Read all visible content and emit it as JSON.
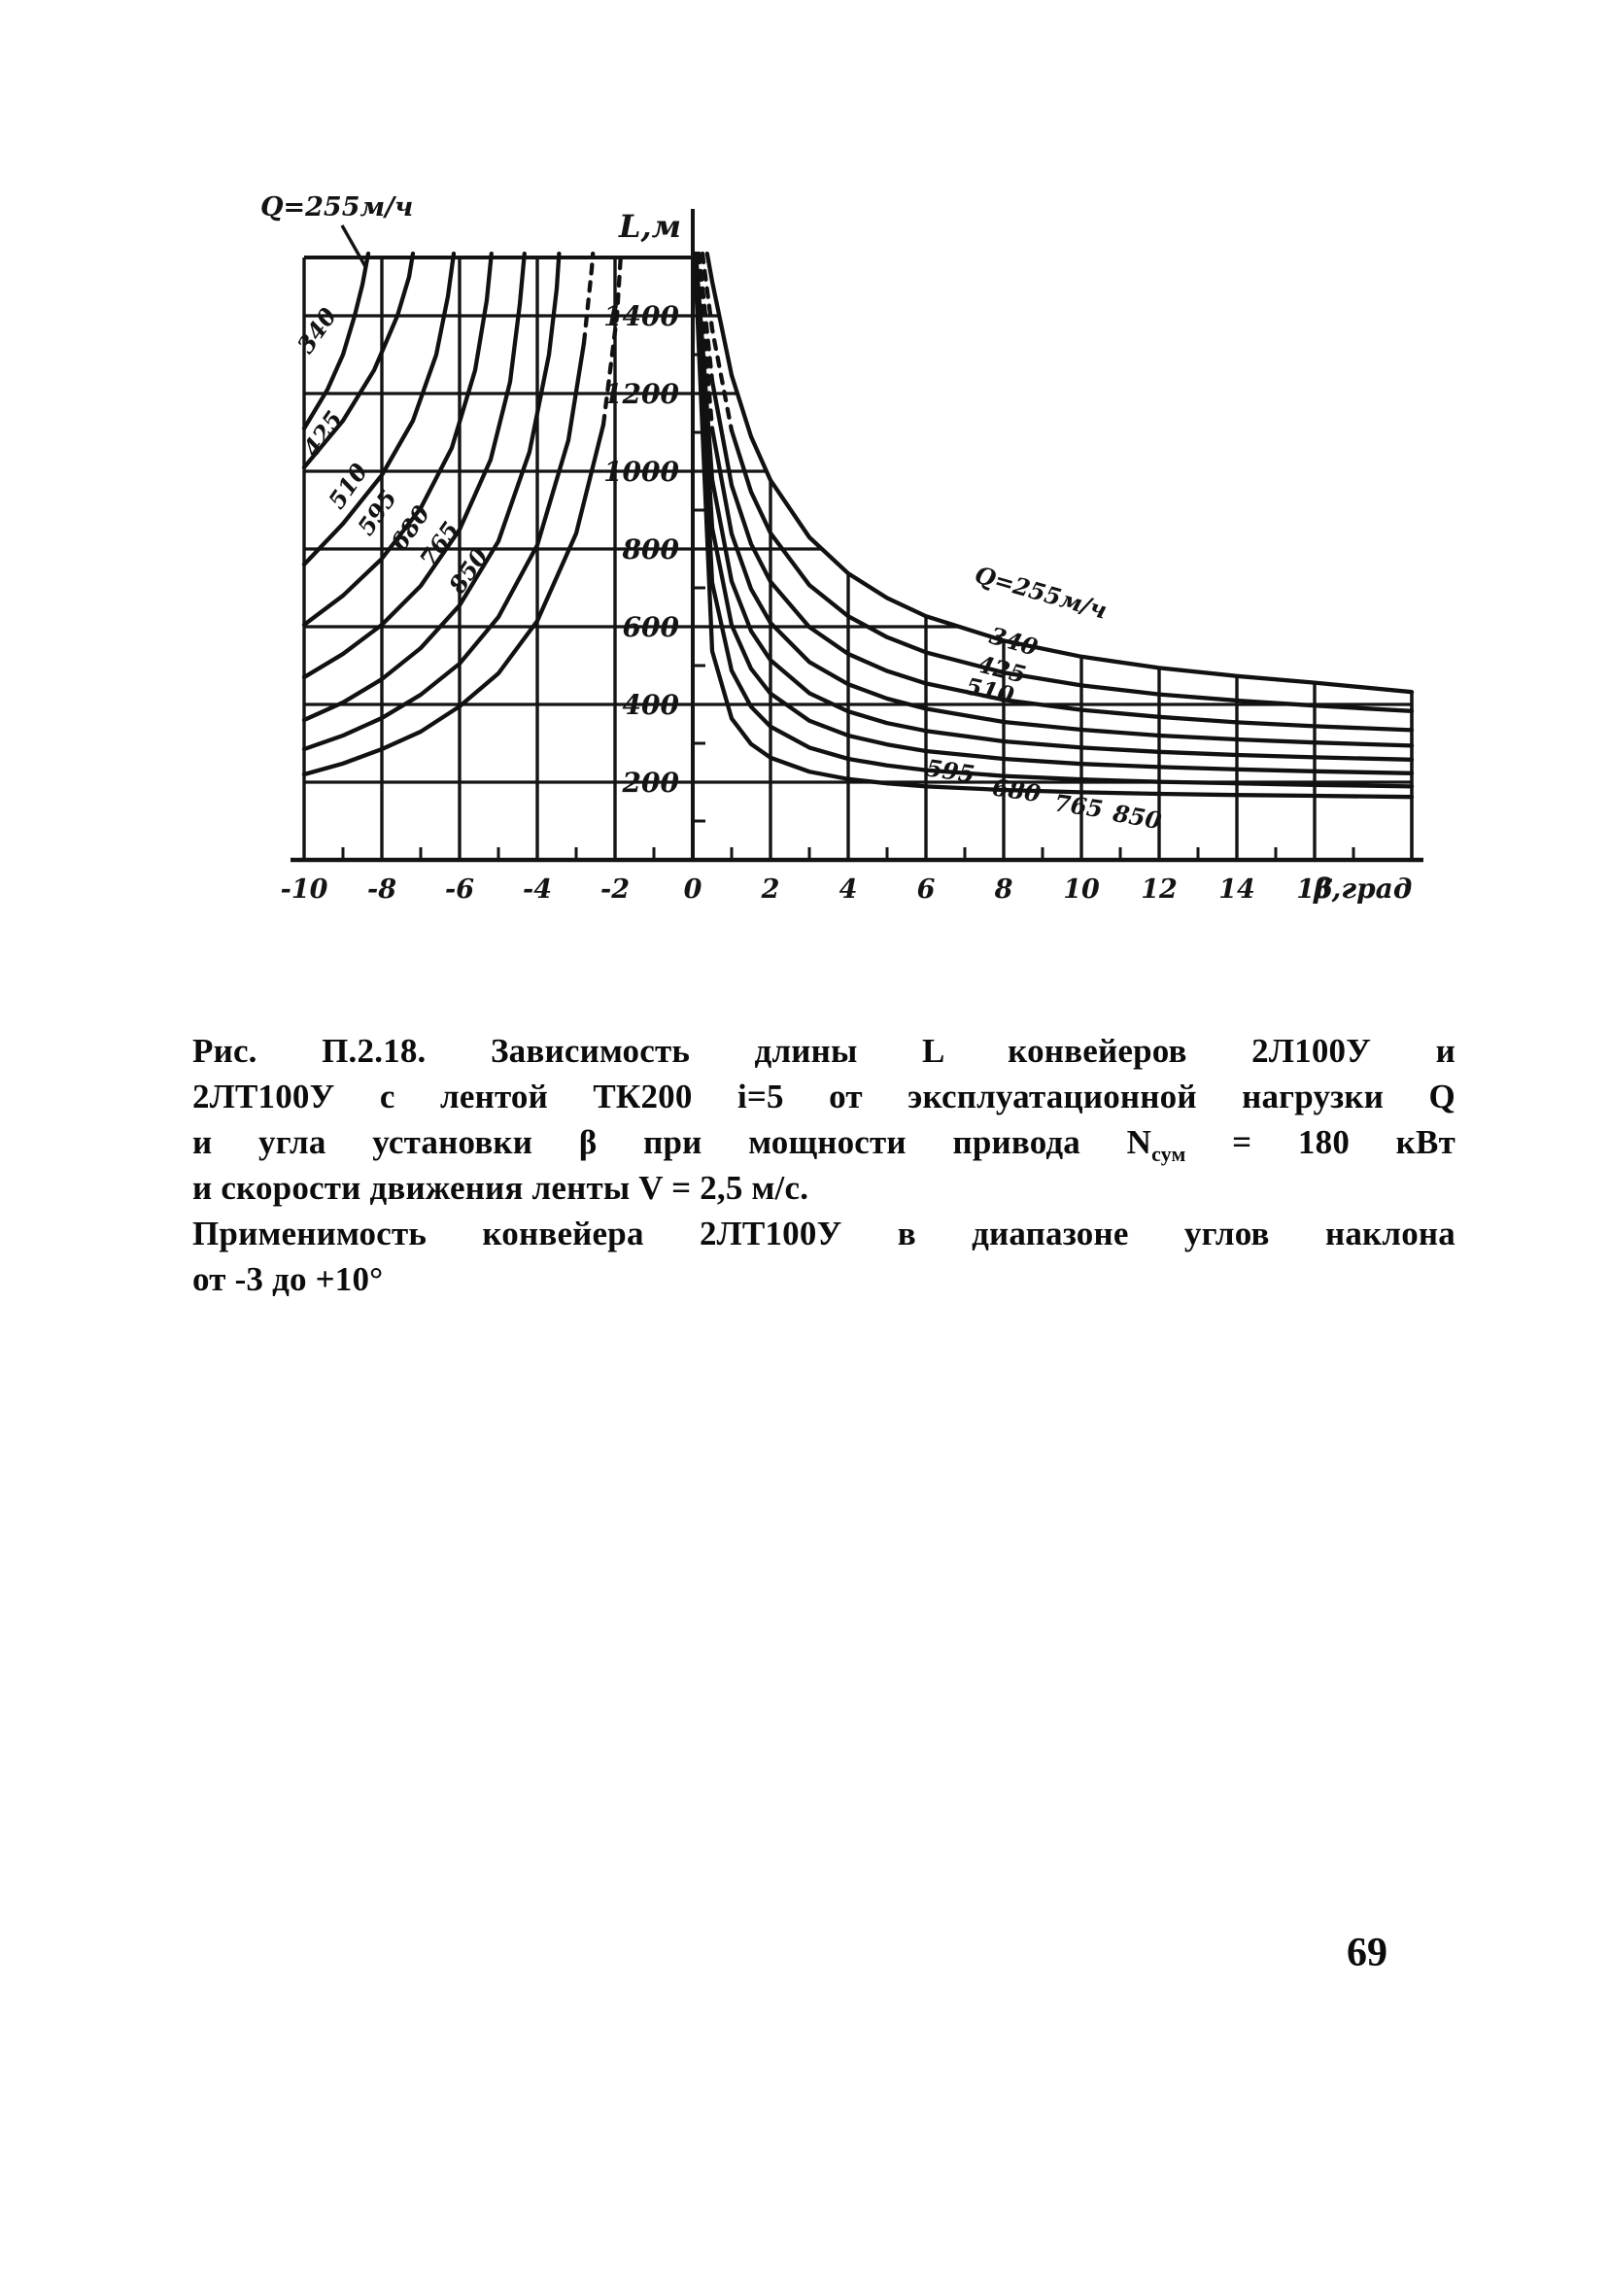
{
  "page": {
    "number": "69"
  },
  "chart_data": {
    "type": "line",
    "description": "Nomogram: conveyor length L (m) versus installation angle beta (deg) for a family of load values Q (m3/h)",
    "ylabel": "L,м",
    "xlabel": "β,град",
    "top_left_note": "Q=255м/ч",
    "xlim": [
      -10,
      18.5
    ],
    "ylim": [
      0,
      1550
    ],
    "x_tick_labels": [
      -10,
      -8,
      -6,
      -4,
      -2,
      0,
      2,
      4,
      6,
      8,
      10,
      12,
      14,
      16
    ],
    "x_minor_ticks": [
      -9,
      -7,
      -5,
      -3,
      -1,
      1,
      3,
      5,
      7,
      9,
      11,
      13,
      15,
      17
    ],
    "y_ticks": [
      200,
      400,
      600,
      800,
      1000,
      1200,
      1400
    ],
    "y_minor_ticks": [
      100,
      300,
      500,
      700,
      900,
      1100,
      1300,
      1500
    ],
    "grid": true,
    "series": [
      {
        "q": "255",
        "right_label": {
          "text": "Q=255м/ч",
          "beta": 8.9,
          "L": 668,
          "rot": 16
        },
        "left_label": null,
        "left": [
          [
            -10,
            1110
          ],
          [
            -9.4,
            1210
          ],
          [
            -9.0,
            1300
          ],
          [
            -8.7,
            1400
          ],
          [
            -8.5,
            1480
          ],
          [
            -8.35,
            1560
          ]
        ],
        "right": [
          [
            0.37,
            1560
          ],
          [
            0.5,
            1488
          ],
          [
            1,
            1247
          ],
          [
            1.5,
            1089
          ],
          [
            2,
            977
          ],
          [
            3,
            830
          ],
          [
            4,
            737
          ],
          [
            5,
            674
          ],
          [
            6,
            627
          ],
          [
            8,
            564
          ],
          [
            10,
            523
          ],
          [
            12,
            494
          ],
          [
            14,
            473
          ],
          [
            16,
            456
          ],
          [
            18.5,
            432
          ]
        ]
      },
      {
        "q": "340",
        "right_label": {
          "text": "340",
          "beta": 8.2,
          "L": 542,
          "rot": 16
        },
        "left_label": {
          "text": "340",
          "beta": -9.5,
          "L": 1350,
          "rot": -55
        },
        "left": [
          [
            -10,
            1010
          ],
          [
            -9.0,
            1130
          ],
          [
            -8.2,
            1260
          ],
          [
            -7.6,
            1400
          ],
          [
            -7.3,
            1500
          ],
          [
            -7.2,
            1560
          ]
        ],
        "right": [
          [
            0.25,
            1560
          ],
          [
            0.5,
            1365
          ],
          [
            1,
            1105
          ],
          [
            1.5,
            947
          ],
          [
            2,
            841
          ],
          [
            3,
            707
          ],
          [
            4,
            627
          ],
          [
            5,
            573
          ],
          [
            6,
            534
          ],
          [
            8,
            482
          ],
          [
            10,
            449
          ],
          [
            12,
            426
          ],
          [
            14,
            410
          ],
          [
            16,
            397
          ],
          [
            18.5,
            383
          ]
        ]
      },
      {
        "q": "425",
        "right_label": {
          "text": "425",
          "beta": 7.9,
          "L": 470,
          "rot": 14
        },
        "left_label": {
          "text": "425",
          "beta": -9.35,
          "L": 1085,
          "rot": -55
        },
        "left": [
          [
            -10,
            760
          ],
          [
            -9,
            865
          ],
          [
            -8,
            990
          ],
          [
            -7.2,
            1130
          ],
          [
            -6.6,
            1300
          ],
          [
            -6.3,
            1450
          ],
          [
            -6.15,
            1560
          ]
        ],
        "right": [
          [
            0.16,
            1560
          ],
          [
            0.5,
            1232
          ],
          [
            1,
            964
          ],
          [
            1.5,
            813
          ],
          [
            2,
            716
          ],
          [
            3,
            599
          ],
          [
            4,
            530
          ],
          [
            5,
            486
          ],
          [
            6,
            454
          ],
          [
            8,
            412
          ],
          [
            10,
            386
          ],
          [
            12,
            368
          ],
          [
            14,
            354
          ],
          [
            16,
            344
          ],
          [
            18.5,
            334
          ]
        ]
      },
      {
        "q": "510",
        "right_label": {
          "text": "510",
          "beta": 7.6,
          "L": 415,
          "rot": 12
        },
        "left_label": {
          "text": "510",
          "beta": -8.7,
          "L": 950,
          "rot": -55
        },
        "left": [
          [
            -10,
            605
          ],
          [
            -9,
            680
          ],
          [
            -8,
            775
          ],
          [
            -7,
            905
          ],
          [
            -6.2,
            1060
          ],
          [
            -5.6,
            1260
          ],
          [
            -5.3,
            1440
          ],
          [
            -5.18,
            1560
          ]
        ],
        "right": [
          [
            0.12,
            1560
          ],
          [
            0.5,
            1109
          ],
          [
            1,
            839
          ],
          [
            1.5,
            697
          ],
          [
            2,
            610
          ],
          [
            3,
            509
          ],
          [
            4,
            452
          ],
          [
            5,
            415
          ],
          [
            6,
            389
          ],
          [
            8,
            355
          ],
          [
            10,
            335
          ],
          [
            12,
            320
          ],
          [
            14,
            310
          ],
          [
            16,
            302
          ],
          [
            18.5,
            294
          ]
        ]
      },
      {
        "q": "595",
        "right_label": {
          "text": "595",
          "beta": 6.6,
          "L": 208,
          "rot": 8
        },
        "left_label": {
          "text": "595",
          "beta": -7.95,
          "L": 882,
          "rot": -55
        },
        "left": [
          [
            -10,
            470
          ],
          [
            -9,
            530
          ],
          [
            -8,
            605
          ],
          [
            -7,
            705
          ],
          [
            -6,
            850
          ],
          [
            -5.2,
            1030
          ],
          [
            -4.7,
            1230
          ],
          [
            -4.45,
            1430
          ],
          [
            -4.33,
            1560
          ]
        ],
        "right": [
          [
            0.08,
            1560
          ],
          [
            0.5,
            978
          ],
          [
            1,
            717
          ],
          [
            1.5,
            589
          ],
          [
            2,
            514
          ],
          [
            3,
            429
          ],
          [
            4,
            382
          ],
          [
            5,
            352
          ],
          [
            6,
            332
          ],
          [
            8,
            305
          ],
          [
            10,
            289
          ],
          [
            12,
            278
          ],
          [
            14,
            270
          ],
          [
            16,
            264
          ],
          [
            18.5,
            258
          ]
        ]
      },
      {
        "q": "680",
        "right_label": {
          "text": "680",
          "beta": 8.3,
          "L": 158,
          "rot": 8
        },
        "left_label": {
          "text": "680",
          "beta": -7.1,
          "L": 842,
          "rot": -55
        },
        "left": [
          [
            -10,
            360
          ],
          [
            -9,
            405
          ],
          [
            -8,
            465
          ],
          [
            -7,
            545
          ],
          [
            -6,
            655
          ],
          [
            -5,
            820
          ],
          [
            -4.2,
            1050
          ],
          [
            -3.7,
            1300
          ],
          [
            -3.5,
            1470
          ],
          [
            -3.44,
            1560
          ]
        ],
        "right": [
          [
            0.07,
            1560
          ],
          [
            0.5,
            854
          ],
          [
            1,
            604
          ],
          [
            1.5,
            492
          ],
          [
            2,
            428
          ],
          [
            3,
            358
          ],
          [
            4,
            320
          ],
          [
            5,
            297
          ],
          [
            6,
            280
          ],
          [
            8,
            260
          ],
          [
            10,
            247
          ],
          [
            12,
            239
          ],
          [
            14,
            233
          ],
          [
            16,
            228
          ],
          [
            18.5,
            223
          ]
        ]
      },
      {
        "q": "765",
        "right_label": {
          "text": "765",
          "beta": 9.9,
          "L": 118,
          "rot": 8
        },
        "left_label": {
          "text": "765",
          "beta": -6.35,
          "L": 800,
          "rot": -55
        },
        "left": [
          [
            -10,
            285
          ],
          [
            -9,
            320
          ],
          [
            -8,
            365
          ],
          [
            -7,
            425
          ],
          [
            -6,
            505
          ],
          [
            -5,
            625
          ],
          [
            -4,
            810
          ],
          [
            -3.2,
            1080
          ],
          [
            -2.8,
            1330
          ],
          [
            -2.6,
            1520
          ],
          [
            -2.57,
            1560
          ]
        ],
        "right": [
          [
            0.06,
            1560
          ],
          [
            0.5,
            713
          ],
          [
            1,
            487
          ],
          [
            1.5,
            394
          ],
          [
            2,
            343
          ],
          [
            3,
            289
          ],
          [
            4,
            260
          ],
          [
            5,
            243
          ],
          [
            6,
            231
          ],
          [
            8,
            216
          ],
          [
            10,
            207
          ],
          [
            12,
            201
          ],
          [
            14,
            197
          ],
          [
            16,
            193
          ],
          [
            18.5,
            189
          ]
        ]
      },
      {
        "q": "850",
        "right_label": {
          "text": "850",
          "beta": 11.4,
          "L": 90,
          "rot": 10
        },
        "left_label": {
          "text": "850",
          "beta": -5.6,
          "L": 732,
          "rot": -55
        },
        "left": [
          [
            -10,
            220
          ],
          [
            -9,
            248
          ],
          [
            -8,
            285
          ],
          [
            -7,
            330
          ],
          [
            -6,
            395
          ],
          [
            -5,
            480
          ],
          [
            -4,
            615
          ],
          [
            -3,
            840
          ],
          [
            -2.3,
            1120
          ],
          [
            -1.95,
            1400
          ],
          [
            -1.85,
            1560
          ]
        ],
        "right": [
          [
            0.05,
            1560
          ],
          [
            0.5,
            537
          ],
          [
            1,
            364
          ],
          [
            1.5,
            298
          ],
          [
            2,
            263
          ],
          [
            3,
            227
          ],
          [
            4,
            208
          ],
          [
            5,
            197
          ],
          [
            6,
            189
          ],
          [
            8,
            180
          ],
          [
            10,
            174
          ],
          [
            12,
            170
          ],
          [
            14,
            167
          ],
          [
            16,
            165
          ],
          [
            18.5,
            162
          ]
        ]
      }
    ],
    "ink_color": "#141414"
  },
  "caption": {
    "line1": "Рис. П.2.18. Зависимость длины L конвейеров 2Л100У и",
    "line2": "2ЛТ100У с лентой ТК200 i=5 от эксплуатационной нагрузки Q",
    "line3_parts": [
      {
        "t": "и угла установки β при мощности привода N"
      },
      {
        "t": "сум",
        "sub": true
      },
      {
        "t": " = 180 кВт"
      }
    ],
    "line4": "и скорости движения ленты V = 2,5 м/с.",
    "line5": "Применимость конвейера 2ЛТ100У в диапазоне углов наклона",
    "line6": "от -3 до +10°"
  }
}
